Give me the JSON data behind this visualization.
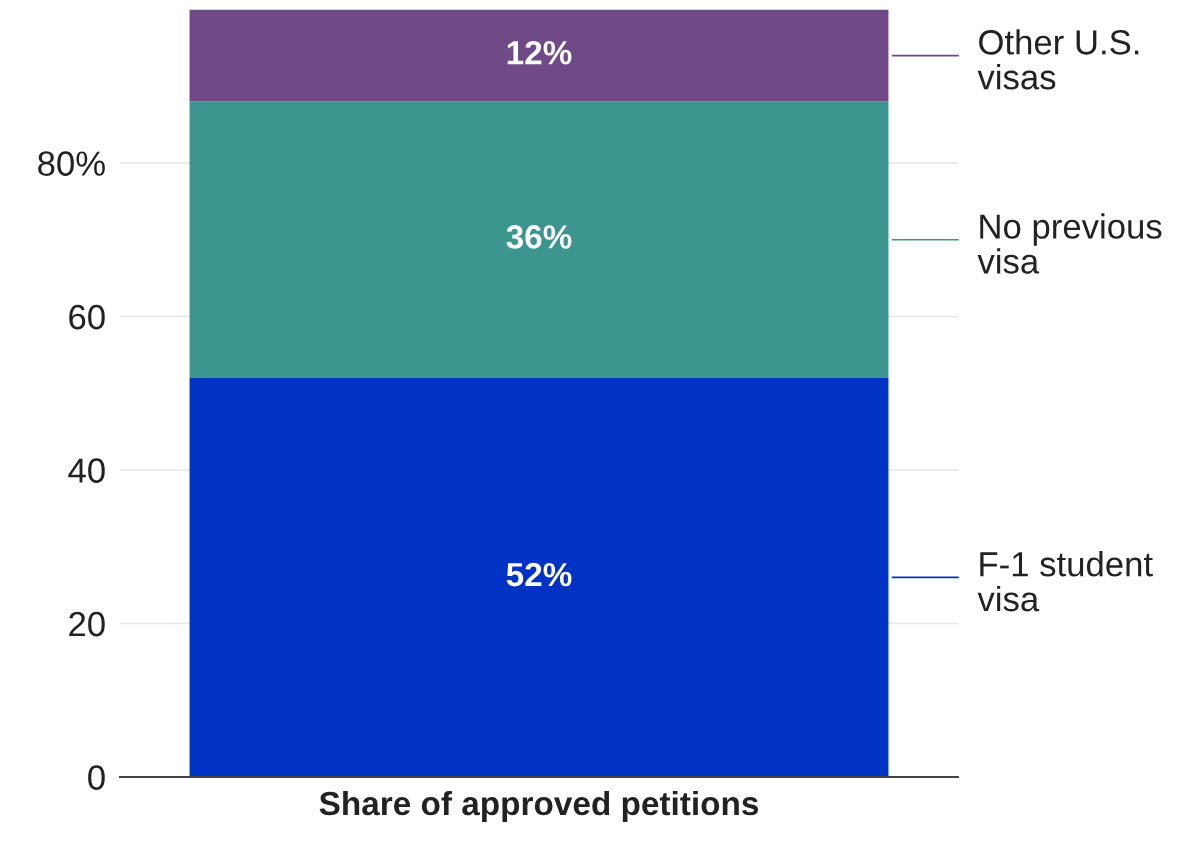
{
  "chart_data": {
    "type": "bar",
    "stacked": true,
    "categories": [
      "Share of approved petitions"
    ],
    "series": [
      {
        "name": "F-1 student visa",
        "color": "#0033c4",
        "values": [
          52
        ],
        "value_labels": [
          "52%"
        ]
      },
      {
        "name": "No previous visa",
        "color": "#3d9590",
        "values": [
          36
        ],
        "value_labels": [
          "36%"
        ]
      },
      {
        "name": "Other U.S. visas",
        "color": "#6f4a86",
        "values": [
          12
        ],
        "value_labels": [
          "12%"
        ]
      }
    ],
    "ylim": [
      0,
      100
    ],
    "yticks": [
      0,
      20,
      40,
      60,
      {
        "value": 80,
        "label": "80%"
      }
    ],
    "grid": "y",
    "legend": "right"
  }
}
